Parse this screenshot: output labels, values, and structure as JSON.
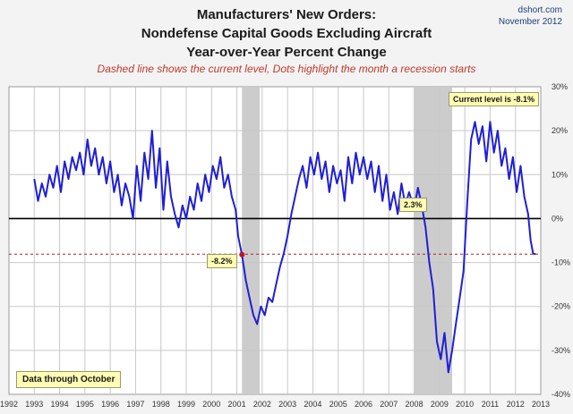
{
  "source": {
    "site": "dshort.com",
    "date": "November 2012"
  },
  "colors": {
    "line": "#1f1fd6",
    "recession": "#cccccc",
    "dashed": "#b02020",
    "marker": "#c0102a",
    "note_bg": "#fffcb4"
  },
  "chart_data": {
    "type": "line",
    "title": [
      "Manufacturers' New Orders:",
      "Nondefense Capital Goods Excluding Aircraft",
      "Year-over-Year Percent Change"
    ],
    "subtitle": "Dashed line shows the current level, Dots highlight the month a recession starts",
    "xlim": [
      1992,
      2013
    ],
    "ylim": [
      -40,
      30
    ],
    "y_ticks": [
      30,
      20,
      10,
      0,
      -10,
      -20,
      -30,
      -40
    ],
    "y_tick_labels": [
      "30%",
      "20%",
      "10%",
      "0%",
      "-10%",
      "-20%",
      "-30%",
      "-40%"
    ],
    "x_ticks": [
      1992,
      1993,
      1994,
      1995,
      1996,
      1997,
      1998,
      1999,
      2000,
      2001,
      2002,
      2003,
      2004,
      2005,
      2006,
      2007,
      2008,
      2009,
      2010,
      2011,
      2012,
      2013
    ],
    "x_tick_labels": [
      "1992",
      "1993",
      "1994",
      "1995",
      "1996",
      "1997",
      "1998",
      "1999",
      "2000",
      "2001",
      "2002",
      "2003",
      "2004",
      "2005",
      "2006",
      "2007",
      "2008",
      "2009",
      "2010",
      "2011",
      "2012",
      "2013"
    ],
    "recessions": [
      [
        2001.2,
        2001.9
      ],
      [
        2008.0,
        2009.5
      ]
    ],
    "current_level": -8.1,
    "series": [
      {
        "name": "YoY % change",
        "x": [
          1993.0,
          1993.15,
          1993.3,
          1993.45,
          1993.6,
          1993.75,
          1993.9,
          1994.05,
          1994.2,
          1994.35,
          1994.5,
          1994.65,
          1994.8,
          1994.95,
          1995.1,
          1995.25,
          1995.4,
          1995.55,
          1995.7,
          1995.85,
          1996.0,
          1996.15,
          1996.3,
          1996.45,
          1996.6,
          1996.75,
          1996.9,
          1997.05,
          1997.2,
          1997.35,
          1997.5,
          1997.65,
          1997.8,
          1997.95,
          1998.1,
          1998.25,
          1998.4,
          1998.55,
          1998.7,
          1998.85,
          1999.0,
          1999.15,
          1999.3,
          1999.45,
          1999.6,
          1999.75,
          1999.9,
          2000.05,
          2000.2,
          2000.35,
          2000.5,
          2000.65,
          2000.8,
          2000.95,
          2001.05,
          2001.2,
          2001.35,
          2001.5,
          2001.65,
          2001.8,
          2001.95,
          2002.1,
          2002.25,
          2002.4,
          2002.55,
          2002.7,
          2002.85,
          2003.0,
          2003.15,
          2003.3,
          2003.45,
          2003.6,
          2003.75,
          2003.9,
          2004.05,
          2004.2,
          2004.35,
          2004.5,
          2004.65,
          2004.8,
          2004.95,
          2005.1,
          2005.25,
          2005.4,
          2005.55,
          2005.7,
          2005.85,
          2006.0,
          2006.15,
          2006.3,
          2006.45,
          2006.6,
          2006.75,
          2006.9,
          2007.05,
          2007.2,
          2007.35,
          2007.5,
          2007.65,
          2007.8,
          2008.0,
          2008.15,
          2008.3,
          2008.45,
          2008.6,
          2008.75,
          2008.9,
          2009.05,
          2009.2,
          2009.35,
          2009.5,
          2009.65,
          2009.8,
          2009.95,
          2010.1,
          2010.25,
          2010.4,
          2010.55,
          2010.7,
          2010.85,
          2011.0,
          2011.15,
          2011.3,
          2011.45,
          2011.6,
          2011.75,
          2011.9,
          2012.05,
          2012.2,
          2012.35,
          2012.5,
          2012.6,
          2012.7,
          2012.8
        ],
        "values": [
          9,
          4,
          8,
          5,
          10,
          7,
          12,
          6,
          13,
          9,
          14,
          11,
          15,
          10,
          18,
          12,
          16,
          10,
          14,
          8,
          13,
          6,
          10,
          3,
          8,
          5,
          0,
          12,
          4,
          15,
          9,
          20,
          7,
          16,
          2,
          13,
          5,
          1,
          -2,
          3,
          0,
          5,
          2,
          8,
          4,
          10,
          6,
          12,
          9,
          14,
          7,
          10,
          5,
          2,
          -4,
          -8.2,
          -14,
          -18,
          -22,
          -24,
          -20,
          -22,
          -18,
          -19,
          -15,
          -11,
          -8,
          -4,
          1,
          5,
          9,
          12,
          7,
          14,
          10,
          15,
          9,
          13,
          6,
          12,
          8,
          11,
          4,
          14,
          8,
          15,
          10,
          14,
          9,
          13,
          6,
          12,
          4,
          10,
          2,
          6,
          1,
          8,
          3,
          6,
          2.3,
          7,
          3,
          -2,
          -10,
          -16,
          -28,
          -32,
          -26,
          -35,
          -30,
          -24,
          -18,
          -12,
          4,
          18,
          22,
          17,
          21,
          13,
          22,
          15,
          20,
          12,
          16,
          9,
          14,
          6,
          12,
          5,
          1,
          -5,
          -8,
          -8.1
        ]
      }
    ],
    "annotations": [
      {
        "label": "Current level is -8.1%"
      },
      {
        "label": "-8.2%",
        "x": 2001.2,
        "y": -8.2
      },
      {
        "label": "2.3%",
        "x": 2008.0,
        "y": 2.3
      },
      {
        "label": "Data through October"
      }
    ]
  }
}
